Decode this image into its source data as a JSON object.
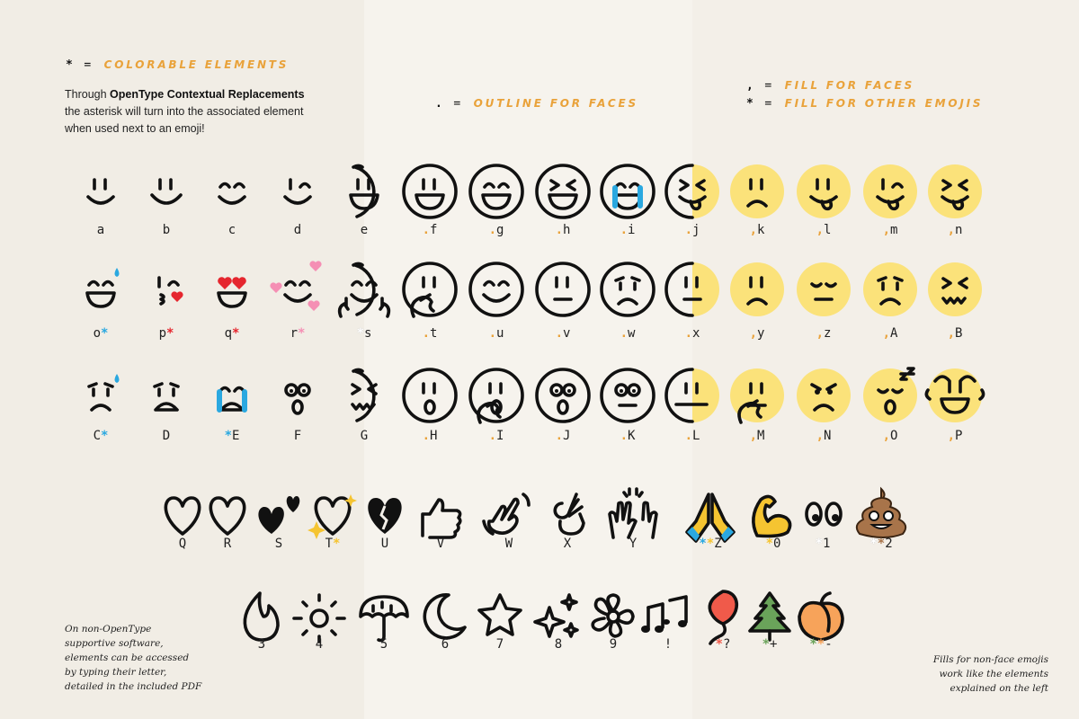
{
  "legend": {
    "colorable": {
      "symbol": "*",
      "equals": "=",
      "text": "COLORABLE ELEMENTS"
    },
    "outline": {
      "symbol": ".",
      "equals": "=",
      "text": "OUTLINE FOR FACES"
    },
    "fill_faces": {
      "symbol": ",",
      "equals": "=",
      "text": "FILL FOR FACES"
    },
    "fill_other": {
      "symbol": "*",
      "equals": "=",
      "text": "FILL FOR OTHER EMOJIS"
    }
  },
  "intro": {
    "line1_pre": "Through ",
    "line1_bold": "OpenType Contextual Replacements",
    "line2": "the asterisk will turn into the associated element",
    "line3": "when used next to an emoji!"
  },
  "note_left": [
    "On non-OpenType",
    "supportive software,",
    "elements can be accessed",
    "by typing their letter,",
    "detailed in the included PDF"
  ],
  "note_right": [
    "Fills for non-face emojis",
    "work like the elements",
    "explained on the left"
  ],
  "colors": {
    "accent": "#e9a23a",
    "face_fill": "#fbe27a",
    "blue": "#2aa8e0",
    "red": "#e5262e",
    "pink": "#f58fb4",
    "yellow": "#f5c431",
    "brown": "#a8744a",
    "balloon": "#f05a4a",
    "green": "#6aa35a",
    "peach": "#f7a35a",
    "white": "#ffffff"
  },
  "faces": [
    [
      {
        "prefix": "",
        "ch": "a",
        "style": "none",
        "eyes": "lines",
        "mouth": "smile"
      },
      {
        "prefix": "",
        "ch": "b",
        "style": "none",
        "eyes": "lines",
        "mouth": "bigsmile"
      },
      {
        "prefix": "",
        "ch": "c",
        "style": "none",
        "eyes": "closed",
        "mouth": "smile"
      },
      {
        "prefix": "",
        "ch": "d",
        "style": "none",
        "eyes": "wink",
        "mouth": "smile"
      },
      {
        "prefix": "",
        "ch": "e",
        "style": "partial",
        "eyes": "lines",
        "mouth": "grin"
      },
      {
        "prefix": ".",
        "ch": "f",
        "style": "outline",
        "eyes": "lines",
        "mouth": "grin"
      },
      {
        "prefix": ".",
        "ch": "g",
        "style": "outline",
        "eyes": "closed",
        "mouth": "grin"
      },
      {
        "prefix": ".",
        "ch": "h",
        "style": "outline",
        "eyes": "x",
        "mouth": "grin"
      },
      {
        "prefix": ".",
        "ch": "i",
        "style": "outline",
        "eyes": "closed",
        "mouth": "grin",
        "extra": "tears"
      },
      {
        "prefix": ".",
        "ch": "j",
        "style": "half",
        "eyes": "x",
        "mouth": "tongue"
      },
      {
        "prefix": ",",
        "ch": "k",
        "style": "fill",
        "eyes": "lines",
        "mouth": "frown"
      },
      {
        "prefix": ",",
        "ch": "l",
        "style": "fill",
        "eyes": "lines",
        "mouth": "tongue"
      },
      {
        "prefix": ",",
        "ch": "m",
        "style": "fill",
        "eyes": "wink",
        "mouth": "tongue"
      },
      {
        "prefix": ",",
        "ch": "n",
        "style": "fill",
        "eyes": "x",
        "mouth": "tongue"
      }
    ],
    [
      {
        "prefix": "",
        "ch": "o",
        "post": [
          "blue"
        ],
        "style": "none",
        "eyes": "closed",
        "mouth": "grin",
        "extra": "drop"
      },
      {
        "prefix": "",
        "ch": "p",
        "post": [
          "red"
        ],
        "style": "none",
        "eyes": "wink",
        "mouth": "kiss",
        "extra": "heart"
      },
      {
        "prefix": "",
        "ch": "q",
        "post": [
          "red"
        ],
        "style": "none",
        "eyes": "heart",
        "mouth": "grin"
      },
      {
        "prefix": "",
        "ch": "r",
        "post": [
          "pink"
        ],
        "style": "none",
        "eyes": "closed",
        "mouth": "smile",
        "extra": "hearts"
      },
      {
        "prefix": "",
        "ch": "s",
        "pre": [
          "white"
        ],
        "style": "partial",
        "eyes": "closed",
        "mouth": "smile",
        "extra": "hands"
      },
      {
        "prefix": ".",
        "ch": "t",
        "style": "outline",
        "eyes": "lines",
        "mouth": "none",
        "extra": "hand"
      },
      {
        "prefix": ".",
        "ch": "u",
        "style": "outline",
        "eyes": "closed",
        "mouth": "smile"
      },
      {
        "prefix": ".",
        "ch": "v",
        "style": "outline",
        "eyes": "lines",
        "mouth": "flat"
      },
      {
        "prefix": ".",
        "ch": "w",
        "style": "outline",
        "eyes": "sad",
        "mouth": "frown"
      },
      {
        "prefix": ".",
        "ch": "x",
        "style": "half",
        "eyes": "lines",
        "mouth": "flat"
      },
      {
        "prefix": ",",
        "ch": "y",
        "style": "fill",
        "eyes": "lines",
        "mouth": "frown"
      },
      {
        "prefix": ",",
        "ch": "z",
        "style": "fill",
        "eyes": "down",
        "mouth": "flat"
      },
      {
        "prefix": ",",
        "ch": "A",
        "style": "fill",
        "eyes": "sad",
        "mouth": "frown"
      },
      {
        "prefix": ",",
        "ch": "B",
        "style": "fill",
        "eyes": "x",
        "mouth": "wavy"
      }
    ],
    [
      {
        "prefix": "",
        "ch": "C",
        "post": [
          "blue"
        ],
        "style": "none",
        "eyes": "sad",
        "mouth": "frown",
        "extra": "drop"
      },
      {
        "prefix": "",
        "ch": "D",
        "style": "none",
        "eyes": "sad",
        "mouth": "open"
      },
      {
        "prefix": "",
        "ch": "E",
        "pre": [
          "blue"
        ],
        "style": "none",
        "eyes": "closed",
        "mouth": "open",
        "extra": "tears"
      },
      {
        "prefix": "",
        "ch": "F",
        "style": "none",
        "eyes": "round",
        "mouth": "o"
      },
      {
        "prefix": "",
        "ch": "G",
        "style": "partial",
        "eyes": "x",
        "mouth": "wavy"
      },
      {
        "prefix": ".",
        "ch": "H",
        "style": "outline",
        "eyes": "lines",
        "mouth": "o"
      },
      {
        "prefix": ".",
        "ch": "I",
        "style": "outline",
        "eyes": "lines",
        "mouth": "o",
        "extra": "hand"
      },
      {
        "prefix": ".",
        "ch": "J",
        "style": "outline",
        "eyes": "round",
        "mouth": "o"
      },
      {
        "prefix": ".",
        "ch": "K",
        "style": "outline",
        "eyes": "round",
        "mouth": "flat"
      },
      {
        "prefix": ".",
        "ch": "L",
        "style": "half",
        "eyes": "lines",
        "mouth": "zip"
      },
      {
        "prefix": ",",
        "ch": "M",
        "style": "fill",
        "eyes": "lines",
        "mouth": "flat",
        "extra": "hand"
      },
      {
        "prefix": ",",
        "ch": "N",
        "style": "fill",
        "eyes": "angry",
        "mouth": "frown"
      },
      {
        "prefix": ",",
        "ch": "O",
        "style": "fill",
        "eyes": "down",
        "mouth": "o",
        "extra": "zzz"
      },
      {
        "prefix": ",",
        "ch": "P",
        "style": "fill",
        "eyes": "none",
        "mouth": "grin",
        "extra": "monkey"
      }
    ]
  ],
  "icons": [
    [
      {
        "ch": "Q",
        "icon": "heart-outline"
      },
      {
        "ch": "R",
        "icon": "heart-outline-2"
      },
      {
        "ch": "S",
        "icon": "two-hearts"
      },
      {
        "ch": "T",
        "post": [
          "yellow"
        ],
        "icon": "sparkle-heart"
      },
      {
        "ch": "U",
        "icon": "broken-heart"
      },
      {
        "ch": "V",
        "icon": "thumbs-up"
      },
      {
        "ch": "W",
        "icon": "waving-hand"
      },
      {
        "ch": "X",
        "icon": "ok-hand"
      },
      {
        "ch": "Y",
        "icon": "raised-hands"
      },
      {
        "ch": "Z",
        "pre": [
          "blue",
          "yellow"
        ],
        "icon": "praying-hands"
      },
      {
        "ch": "0",
        "pre": [
          "yellow"
        ],
        "icon": "flexed-bicep"
      },
      {
        "ch": "1",
        "pre": [
          "white"
        ],
        "icon": "eyes"
      },
      {
        "ch": "2",
        "pre": [
          "white",
          "brown"
        ],
        "icon": "poop"
      }
    ],
    [
      {
        "ch": "3",
        "icon": "fire"
      },
      {
        "ch": "4",
        "icon": "sun"
      },
      {
        "ch": "5",
        "icon": "umbrella"
      },
      {
        "ch": "6",
        "icon": "moon"
      },
      {
        "ch": "7",
        "icon": "star"
      },
      {
        "ch": "8",
        "icon": "sparkles"
      },
      {
        "ch": "9",
        "icon": "flower"
      },
      {
        "ch": "!",
        "icon": "music-notes"
      },
      {
        "ch": "?",
        "pre": [
          "balloon"
        ],
        "icon": "balloon"
      },
      {
        "ch": "+",
        "pre": [
          "green"
        ],
        "icon": "christmas-tree"
      },
      {
        "ch": "-",
        "pre": [
          "green",
          "peach"
        ],
        "icon": "peach"
      }
    ]
  ]
}
